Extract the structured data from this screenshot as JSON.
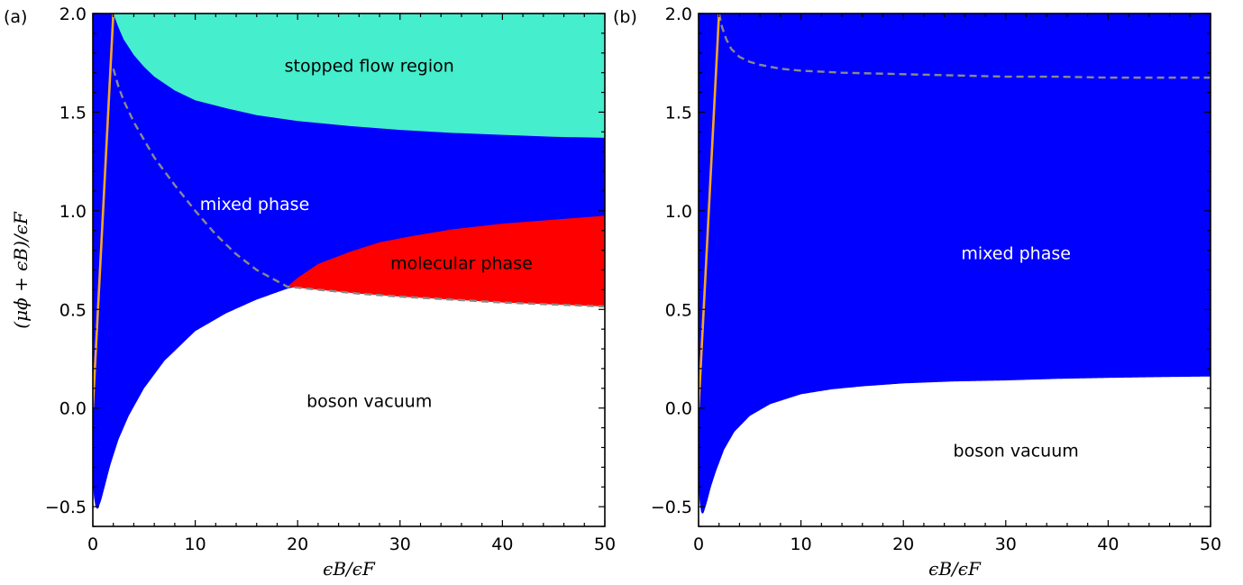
{
  "chart_data": [
    {
      "panel": "(a)",
      "type": "area",
      "xlabel": "ϵB/ϵF",
      "ylabel": "(μϕ + ϵB)/ϵF",
      "xlim": [
        0,
        50
      ],
      "ylim": [
        -0.6,
        2.0
      ],
      "xticks": [
        0,
        10,
        20,
        30,
        40,
        50
      ],
      "xtick_labels": [
        "0",
        "10",
        "20",
        "30",
        "40",
        "50"
      ],
      "yticks": [
        -0.5,
        0.0,
        0.5,
        1.0,
        1.5,
        2.0
      ],
      "ytick_labels": [
        "−0.5",
        "0.0",
        "0.5",
        "1.0",
        "1.5",
        "2.0"
      ],
      "grid": false,
      "regions": [
        {
          "label": "stopped flow region",
          "color": "#45eecd",
          "text_color": "#000000",
          "at": [
            27,
            1.73
          ]
        },
        {
          "label": "mixed phase",
          "color": "#0000ff",
          "text_color": "#ffffff",
          "at": [
            15.8,
            1.03
          ]
        },
        {
          "label": "molecular phase",
          "color": "#ff0000",
          "text_color": "#000000",
          "at": [
            36,
            0.73
          ]
        },
        {
          "label": "boson vacuum",
          "color": "#ffffff",
          "text_color": "#000000",
          "at": [
            27,
            0.03
          ]
        }
      ],
      "curves": {
        "lower_boundary": {
          "x": [
            0,
            0.15,
            0.3,
            0.5,
            0.8,
            1.2,
            1.7,
            2.5,
            3.5,
            5,
            7,
            10,
            13,
            16,
            19,
            22,
            26,
            30,
            35,
            40,
            45,
            50
          ],
          "y": [
            -0.38,
            -0.47,
            -0.51,
            -0.51,
            -0.47,
            -0.39,
            -0.29,
            -0.16,
            -0.04,
            0.1,
            0.24,
            0.39,
            0.48,
            0.55,
            0.605,
            0.64,
            0.68,
            0.71,
            0.74,
            0.76,
            0.775,
            0.79
          ]
        },
        "stopped_flow_boundary": {
          "x": [
            2.0,
            2.5,
            3,
            4,
            5,
            6,
            8,
            10,
            13,
            16,
            20,
            25,
            30,
            35,
            40,
            45,
            50
          ],
          "y": [
            2.0,
            1.93,
            1.87,
            1.79,
            1.73,
            1.68,
            1.61,
            1.56,
            1.52,
            1.485,
            1.455,
            1.43,
            1.41,
            1.395,
            1.385,
            1.375,
            1.37
          ]
        },
        "molecular_upper": {
          "x": [
            19.0,
            20,
            22,
            25,
            28,
            31,
            35,
            40,
            45,
            50
          ],
          "y": [
            0.615,
            0.66,
            0.73,
            0.79,
            0.84,
            0.87,
            0.905,
            0.935,
            0.955,
            0.975
          ]
        },
        "dashed_gray": {
          "x": [
            2.0,
            2.5,
            3,
            4,
            5,
            6,
            8,
            10,
            12,
            14,
            16,
            19,
            22,
            26,
            30,
            35,
            40,
            45,
            50
          ],
          "y": [
            1.72,
            1.63,
            1.56,
            1.45,
            1.36,
            1.27,
            1.13,
            1.0,
            0.88,
            0.78,
            0.7,
            0.615,
            0.6,
            0.58,
            0.565,
            0.55,
            0.535,
            0.525,
            0.515
          ]
        },
        "orange_line": {
          "x": [
            0,
            2.0
          ],
          "y": [
            0.0,
            2.0
          ]
        }
      },
      "line_colors": {
        "dashed_gray": "#8a8a8a",
        "orange_line": "#f5a623"
      }
    },
    {
      "panel": "(b)",
      "type": "area",
      "xlabel": "ϵB/ϵF",
      "ylabel": "",
      "xlim": [
        0,
        50
      ],
      "ylim": [
        -0.6,
        2.0
      ],
      "xticks": [
        0,
        10,
        20,
        30,
        40,
        50
      ],
      "xtick_labels": [
        "0",
        "10",
        "20",
        "30",
        "40",
        "50"
      ],
      "yticks": [
        -0.5,
        0.0,
        0.5,
        1.0,
        1.5,
        2.0
      ],
      "ytick_labels": [
        "−0.5",
        "0.0",
        "0.5",
        "1.0",
        "1.5",
        "2.0"
      ],
      "grid": false,
      "regions": [
        {
          "label": "mixed phase",
          "color": "#0000ff",
          "text_color": "#ffffff",
          "at": [
            31,
            0.78
          ]
        },
        {
          "label": "boson vacuum",
          "color": "#ffffff",
          "text_color": "#000000",
          "at": [
            31,
            -0.22
          ]
        }
      ],
      "curves": {
        "lower_boundary": {
          "x": [
            0,
            0.15,
            0.3,
            0.5,
            0.8,
            1.2,
            1.7,
            2.5,
            3.5,
            5,
            7,
            10,
            13,
            16,
            20,
            25,
            30,
            35,
            40,
            45,
            50
          ],
          "y": [
            -0.4,
            -0.5,
            -0.54,
            -0.53,
            -0.48,
            -0.4,
            -0.32,
            -0.21,
            -0.12,
            -0.04,
            0.02,
            0.07,
            0.095,
            0.11,
            0.125,
            0.135,
            0.14,
            0.148,
            0.153,
            0.157,
            0.16
          ]
        },
        "dashed_gray": {
          "x": [
            2.0,
            2.3,
            2.7,
            3.2,
            4,
            5,
            6,
            8,
            10,
            14,
            18,
            22,
            26,
            30,
            35,
            40,
            45,
            50
          ],
          "y": [
            2.0,
            1.93,
            1.87,
            1.82,
            1.78,
            1.755,
            1.74,
            1.72,
            1.71,
            1.7,
            1.695,
            1.69,
            1.685,
            1.68,
            1.68,
            1.675,
            1.675,
            1.675
          ]
        },
        "orange_line": {
          "x": [
            0,
            2.0
          ],
          "y": [
            0.0,
            2.0
          ]
        }
      },
      "line_colors": {
        "dashed_gray": "#8a8a8a",
        "orange_line": "#f5a623"
      }
    }
  ]
}
